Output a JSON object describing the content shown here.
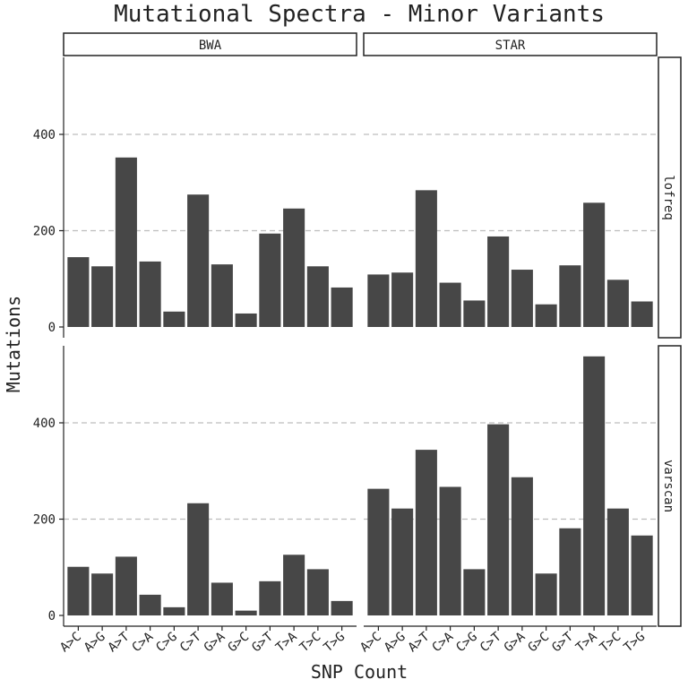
{
  "chart_data": {
    "type": "bar",
    "title": "Mutational Spectra - Minor Variants",
    "xlabel": "SNP Count",
    "ylabel": "Mutations",
    "ylim": [
      0,
      560
    ],
    "yticks": [
      0,
      200,
      400
    ],
    "grid": "horizontal dashed",
    "bar_color": "#474747",
    "columns": [
      "BWA",
      "STAR"
    ],
    "rows": [
      "lofreq",
      "varscan"
    ],
    "categories": [
      "A>C",
      "A>G",
      "A>T",
      "C>A",
      "C>G",
      "C>T",
      "G>A",
      "G>C",
      "G>T",
      "T>A",
      "T>C",
      "T>G"
    ],
    "panels": [
      {
        "column": "BWA",
        "row": "lofreq",
        "values": [
          145,
          126,
          352,
          136,
          32,
          275,
          130,
          28,
          194,
          246,
          126,
          82
        ]
      },
      {
        "column": "STAR",
        "row": "lofreq",
        "values": [
          109,
          113,
          284,
          92,
          55,
          188,
          119,
          47,
          128,
          258,
          98,
          53
        ]
      },
      {
        "column": "BWA",
        "row": "varscan",
        "values": [
          101,
          87,
          122,
          43,
          17,
          233,
          68,
          10,
          71,
          126,
          96,
          30
        ]
      },
      {
        "column": "STAR",
        "row": "varscan",
        "values": [
          263,
          222,
          344,
          267,
          96,
          397,
          287,
          87,
          181,
          538,
          222,
          166
        ]
      }
    ]
  }
}
